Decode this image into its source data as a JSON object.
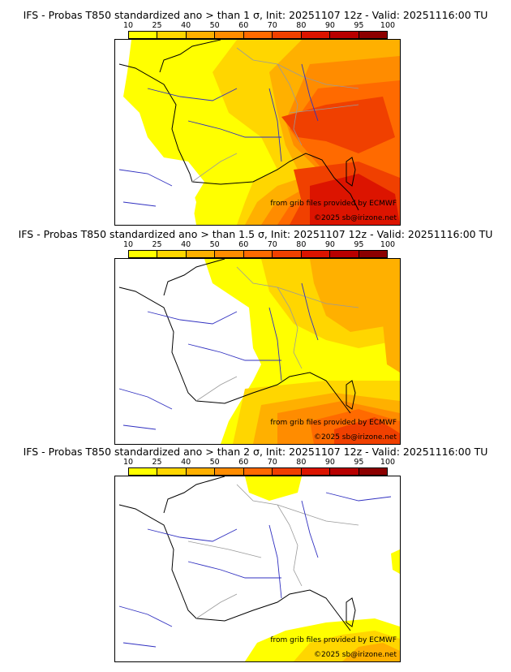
{
  "colors": {
    "levels": [
      "#ffff00",
      "#ffd600",
      "#ffb000",
      "#ff8c00",
      "#ff6a00",
      "#f04000",
      "#dc1400",
      "#b80000",
      "#8c0000"
    ],
    "land_bg": "#ffffff",
    "coast": "#000000",
    "rivers": "#3030c0",
    "borders": "#9a9a9a"
  },
  "legend": {
    "ticks": [
      "10",
      "25",
      "40",
      "50",
      "60",
      "70",
      "80",
      "90",
      "95",
      "100"
    ]
  },
  "panels": [
    {
      "title": "IFS - Probas T850  standardized ano > than 1 σ, Init: 20251107 12z - Valid: 20251116:00 TU",
      "credit_source": "from grib files provided by ECMWF",
      "credit_copyright": "©2025 sb@irizone.net"
    },
    {
      "title": "IFS - Probas T850  standardized ano > than 1.5 σ, Init: 20251107 12z - Valid: 20251116:00 TU",
      "credit_source": "from grib files provided by ECMWF",
      "credit_copyright": "©2025 sb@irizone.net"
    },
    {
      "title": "IFS - Probas T850  standardized ano > than 2 σ, Init: 20251107 12z - Valid: 20251116:00 TU",
      "credit_source": "from grib files provided by ECMWF",
      "credit_copyright": "©2025 sb@irizone.net"
    }
  ]
}
